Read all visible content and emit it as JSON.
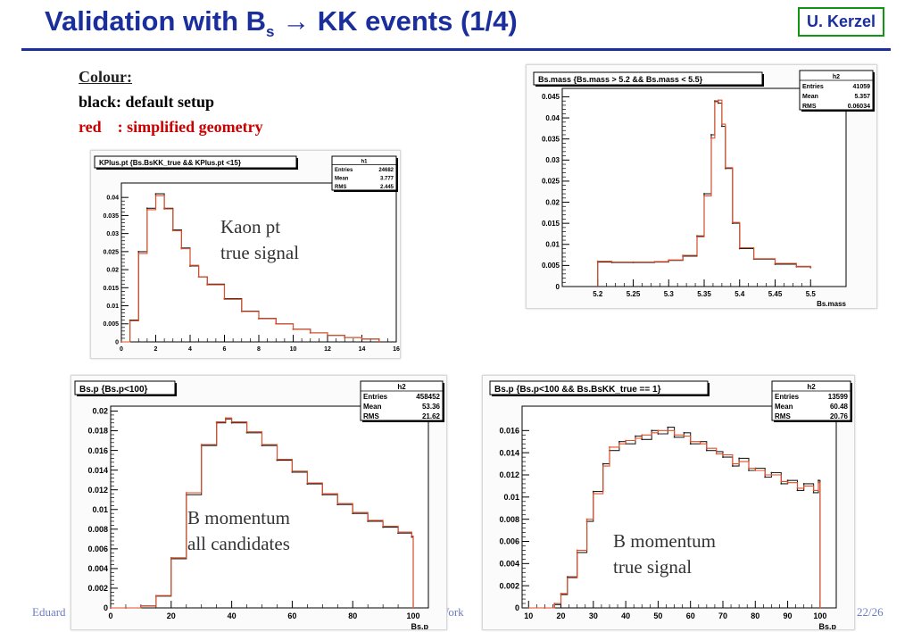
{
  "slide": {
    "title_main": "Validation with B",
    "title_sub": "s",
    "title_arrow": "→",
    "title_rest": " KK events (1/4)",
    "author": "U. Kerzel",
    "colour_title": "Colour:",
    "colour_black": "black: default setup",
    "colour_red": "red    : simplified geometry",
    "footer_left": "Eduard",
    "footer_mid": "nt Work",
    "footer_right": "22/26"
  },
  "colors": {
    "title": "#1a2e9c",
    "default": "#222222",
    "simplified": "#e0502a",
    "frame_bg": "#ffffff"
  },
  "chart_data": [
    {
      "id": "kaon-pt",
      "type": "line",
      "title": "KPlus.pt  {Bs.BsKK_true && KPlus.pt <15}",
      "stats": {
        "name": "h1",
        "rows": [
          [
            "Entries",
            "24682"
          ],
          [
            "Mean",
            "3.777"
          ],
          [
            "RMS",
            "2.445"
          ]
        ]
      },
      "xlabel": "",
      "xlim": [
        0,
        16
      ],
      "ylim": [
        0,
        0.044
      ],
      "xticks": [
        0,
        2,
        4,
        6,
        8,
        10,
        12,
        14,
        16
      ],
      "yticks": [
        0,
        0.005,
        0.01,
        0.015,
        0.02,
        0.025,
        0.03,
        0.035,
        0.04
      ],
      "ytick_labels": [
        "0",
        "0.005",
        "0.01",
        "0.015",
        "0.02",
        "0.025",
        "0.03",
        "0.035",
        "0.04"
      ],
      "annotation": [
        "Kaon pt",
        "true signal"
      ],
      "series": [
        {
          "color": "default",
          "x": [
            0,
            0.5,
            1.0,
            1.5,
            2.0,
            2.5,
            3.0,
            3.5,
            4.0,
            4.5,
            5.0,
            6.0,
            7.0,
            8.0,
            9.0,
            10.0,
            11.0,
            12.0,
            13.0,
            14.0,
            15.0
          ],
          "values": [
            0,
            0.006,
            0.025,
            0.037,
            0.041,
            0.037,
            0.031,
            0.026,
            0.021,
            0.018,
            0.016,
            0.012,
            0.0085,
            0.0065,
            0.005,
            0.0035,
            0.0025,
            0.0018,
            0.0012,
            0.0008,
            0
          ]
        },
        {
          "color": "simplified",
          "x": [
            0,
            0.5,
            1.0,
            1.5,
            2.0,
            2.5,
            3.0,
            3.5,
            4.0,
            4.5,
            5.0,
            6.0,
            7.0,
            8.0,
            9.0,
            10.0,
            11.0,
            12.0,
            13.0,
            14.0,
            15.0
          ],
          "values": [
            0,
            0.0058,
            0.0245,
            0.0366,
            0.0405,
            0.0368,
            0.0308,
            0.0258,
            0.0212,
            0.018,
            0.0158,
            0.0118,
            0.0084,
            0.0064,
            0.005,
            0.0035,
            0.0025,
            0.0018,
            0.0012,
            0.0008,
            0
          ]
        }
      ]
    },
    {
      "id": "bs-mass",
      "type": "line",
      "title": "Bs.mass {Bs.mass > 5.2 && Bs.mass < 5.5}",
      "stats": {
        "name": "h2",
        "rows": [
          [
            "Entries",
            "41059"
          ],
          [
            "Mean",
            "5.357"
          ],
          [
            "RMS",
            "0.06034"
          ]
        ]
      },
      "xlabel": "Bs.mass",
      "xlim": [
        5.15,
        5.55
      ],
      "ylim": [
        0,
        0.047
      ],
      "xticks": [
        5.2,
        5.25,
        5.3,
        5.35,
        5.4,
        5.45,
        5.5
      ],
      "yticks": [
        0,
        0.005,
        0.01,
        0.015,
        0.02,
        0.025,
        0.03,
        0.035,
        0.04,
        0.045
      ],
      "ytick_labels": [
        "0",
        "0.005",
        "0.01",
        "0.015",
        "0.02",
        "0.025",
        "0.03",
        "0.035",
        "0.04",
        "0.045"
      ],
      "annotation": [],
      "series": [
        {
          "color": "default",
          "x": [
            5.2,
            5.22,
            5.25,
            5.28,
            5.3,
            5.32,
            5.34,
            5.35,
            5.36,
            5.365,
            5.37,
            5.375,
            5.38,
            5.39,
            5.4,
            5.42,
            5.45,
            5.48,
            5.5
          ],
          "values": [
            0.0058,
            0.0057,
            0.0057,
            0.0058,
            0.0062,
            0.0072,
            0.012,
            0.022,
            0.036,
            0.044,
            0.0435,
            0.038,
            0.028,
            0.015,
            0.009,
            0.0065,
            0.0053,
            0.0047,
            0.0045
          ]
        },
        {
          "color": "simplified",
          "x": [
            5.2,
            5.22,
            5.25,
            5.28,
            5.3,
            5.32,
            5.34,
            5.35,
            5.36,
            5.365,
            5.37,
            5.375,
            5.38,
            5.39,
            5.4,
            5.42,
            5.45,
            5.48,
            5.5
          ],
          "values": [
            0.006,
            0.0058,
            0.0058,
            0.0059,
            0.0063,
            0.0074,
            0.0118,
            0.0215,
            0.0352,
            0.0438,
            0.0442,
            0.0385,
            0.0282,
            0.0152,
            0.0092,
            0.0066,
            0.0055,
            0.0048,
            0.0046
          ]
        }
      ]
    },
    {
      "id": "b-momentum-all",
      "type": "line",
      "title": "Bs.p {Bs.p<100}",
      "stats": {
        "name": "h2",
        "rows": [
          [
            "Entries",
            "458452"
          ],
          [
            "Mean",
            "53.36"
          ],
          [
            "RMS",
            "21.62"
          ]
        ]
      },
      "xlabel": "Bs.p",
      "xlim": [
        0,
        105
      ],
      "ylim": [
        0,
        0.0205
      ],
      "xticks": [
        0,
        20,
        40,
        60,
        80,
        100
      ],
      "yticks": [
        0,
        0.002,
        0.004,
        0.006,
        0.008,
        0.01,
        0.012,
        0.014,
        0.016,
        0.018,
        0.02
      ],
      "ytick_labels": [
        "0",
        "0.002",
        "0.004",
        "0.006",
        "0.008",
        "0.01",
        "0.012",
        "0.014",
        "0.016",
        "0.018",
        "0.02"
      ],
      "annotation": [
        "B momentum",
        "all candidates"
      ],
      "series": [
        {
          "color": "default",
          "x": [
            0,
            5,
            10,
            15,
            20,
            25,
            30,
            35,
            38,
            40,
            45,
            50,
            55,
            60,
            65,
            70,
            75,
            80,
            85,
            90,
            95,
            99.5,
            100
          ],
          "values": [
            0,
            0,
            0.0002,
            0.0012,
            0.005,
            0.0115,
            0.0165,
            0.0188,
            0.0192,
            0.0188,
            0.0178,
            0.0165,
            0.015,
            0.0138,
            0.0126,
            0.0115,
            0.0105,
            0.0096,
            0.0088,
            0.0082,
            0.0076,
            0.0072,
            0
          ]
        },
        {
          "color": "simplified",
          "x": [
            0,
            5,
            10,
            15,
            20,
            25,
            30,
            35,
            38,
            40,
            45,
            50,
            55,
            60,
            65,
            70,
            75,
            80,
            85,
            90,
            95,
            99.5,
            100
          ],
          "values": [
            0,
            0,
            0.00021,
            0.00125,
            0.0051,
            0.0117,
            0.0166,
            0.0189,
            0.0193,
            0.0189,
            0.0179,
            0.0166,
            0.0151,
            0.0139,
            0.0127,
            0.0116,
            0.0106,
            0.0097,
            0.0089,
            0.0083,
            0.0077,
            0.0073,
            0
          ]
        }
      ]
    },
    {
      "id": "b-momentum-true",
      "type": "line",
      "title": "Bs.p {Bs.p<100 && Bs.BsKK_true == 1}",
      "stats": {
        "name": "h2",
        "rows": [
          [
            "Entries",
            "13599"
          ],
          [
            "Mean",
            "60.48"
          ],
          [
            "RMS",
            "20.76"
          ]
        ]
      },
      "xlabel": "Bs.p",
      "xlim": [
        8,
        105
      ],
      "ylim": [
        0,
        0.0182
      ],
      "xticks": [
        10,
        20,
        30,
        40,
        50,
        60,
        70,
        80,
        90,
        100
      ],
      "yticks": [
        0,
        0.002,
        0.004,
        0.006,
        0.008,
        0.01,
        0.012,
        0.014,
        0.016
      ],
      "ytick_labels": [
        "0",
        "0.002",
        "0.004",
        "0.006",
        "0.008",
        "0.01",
        "0.012",
        "0.014",
        "0.016"
      ],
      "annotation": [
        "B momentum",
        "true signal"
      ],
      "series": [
        {
          "color": "default",
          "x": [
            10,
            15,
            18,
            20,
            22,
            25,
            28,
            30,
            33,
            35,
            38,
            40,
            43,
            45,
            48,
            50,
            53,
            55,
            58,
            60,
            63,
            65,
            68,
            70,
            73,
            75,
            78,
            80,
            83,
            85,
            88,
            90,
            93,
            95,
            98,
            99.5,
            100
          ],
          "values": [
            0,
            0,
            0.0003,
            0.0012,
            0.0028,
            0.005,
            0.0078,
            0.0105,
            0.013,
            0.0142,
            0.015,
            0.0148,
            0.0155,
            0.0152,
            0.016,
            0.0157,
            0.0163,
            0.0154,
            0.0158,
            0.0148,
            0.015,
            0.0142,
            0.0141,
            0.0136,
            0.0128,
            0.0135,
            0.0124,
            0.0126,
            0.0118,
            0.0122,
            0.0112,
            0.0115,
            0.0106,
            0.0112,
            0.0104,
            0.0115,
            0
          ]
        },
        {
          "color": "simplified",
          "x": [
            10,
            15,
            18,
            20,
            22,
            25,
            28,
            30,
            33,
            35,
            38,
            40,
            43,
            45,
            48,
            50,
            53,
            55,
            58,
            60,
            63,
            65,
            68,
            70,
            73,
            75,
            78,
            80,
            83,
            85,
            88,
            90,
            93,
            95,
            98,
            99.5,
            100
          ],
          "values": [
            0,
            0,
            0.0004,
            0.0013,
            0.0027,
            0.0052,
            0.008,
            0.0103,
            0.0128,
            0.0145,
            0.0148,
            0.0151,
            0.0153,
            0.0156,
            0.0158,
            0.016,
            0.016,
            0.0156,
            0.0155,
            0.015,
            0.0148,
            0.0144,
            0.0139,
            0.0138,
            0.013,
            0.0132,
            0.0126,
            0.0124,
            0.012,
            0.012,
            0.0114,
            0.0113,
            0.0108,
            0.011,
            0.0106,
            0.0113,
            0
          ]
        }
      ]
    }
  ]
}
